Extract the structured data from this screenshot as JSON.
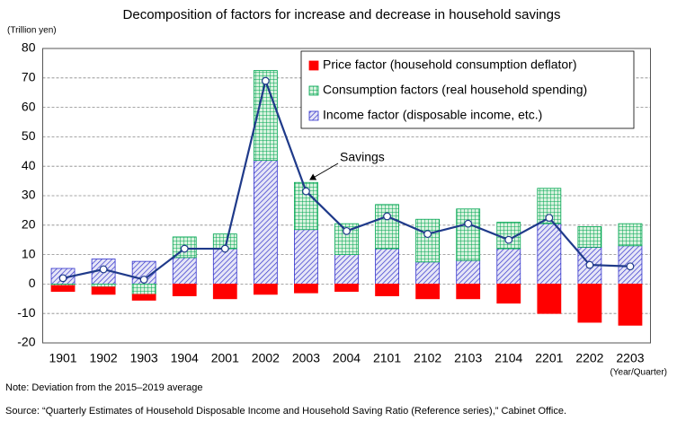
{
  "chart_data": {
    "type": "bar",
    "stacked": true,
    "title": "Decomposition of factors for increase and decrease in household savings",
    "y_label": "(Trillion yen)",
    "x_label": "(Year/Quarter)",
    "categories": [
      "1901",
      "1902",
      "1903",
      "1904",
      "2001",
      "2002",
      "2003",
      "2004",
      "2101",
      "2102",
      "2103",
      "2104",
      "2201",
      "2202",
      "2203"
    ],
    "series": [
      {
        "name": "Price factor (household consumption deflator)",
        "color": "#ff0000",
        "pattern": "solid",
        "values": [
          -2,
          -2.5,
          -2,
          -4,
          -5,
          -3.5,
          -3,
          -2.5,
          -4,
          -5,
          -5,
          -6.5,
          -10,
          -13,
          -14
        ]
      },
      {
        "name": "Consumption factors (real household spending)",
        "color": "#00a651",
        "pattern": "grid",
        "values": [
          -0.5,
          -1,
          -3.5,
          7,
          5,
          30.5,
          16,
          10.5,
          15,
          14.5,
          17.5,
          9,
          12,
          7,
          7.5
        ]
      },
      {
        "name": "Income factor (disposable income, etc.)",
        "color": "#3333cc",
        "pattern": "hatch",
        "values": [
          5.3,
          8.5,
          7.7,
          9,
          12,
          42,
          18.5,
          10,
          12,
          7.5,
          8,
          12,
          20.5,
          12.5,
          13
        ]
      }
    ],
    "line": {
      "name": "Savings",
      "color": "#1f3a8a",
      "values": [
        2,
        5,
        1.5,
        12,
        12,
        69,
        31.5,
        18,
        23,
        17,
        20.5,
        15,
        22.5,
        6.5,
        6
      ]
    },
    "ylim": [
      -20,
      80
    ],
    "yticks": [
      -20,
      -10,
      0,
      10,
      20,
      30,
      40,
      50,
      60,
      70,
      80
    ],
    "grid": true,
    "legend": "upper right",
    "note": "Note: Deviation from the 2015–2019 average",
    "source": "Source: “Quarterly Estimates of Household Disposable Income and Household Saving Ratio (Reference series),” Cabinet Office."
  }
}
